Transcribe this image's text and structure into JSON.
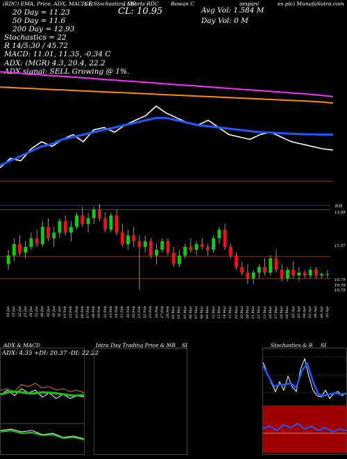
{
  "header": {
    "top_texts": [
      "(RDC) EMA, Price, ADX, MACD, R",
      "SI, Stochastics, MR",
      "I Charts RDC",
      "Rowan C",
      "ompani",
      "es plc) MunafaSutra.com"
    ],
    "cl_label": "CL: 10.95",
    "avg_vol": "Avg Vol: 1.584  M",
    "day_vol": "Day Vol: 0   M",
    "ema_lines": [
      "20  Day  = 11.23",
      "50  Day  = 11.6",
      "200  Day  = 12.93"
    ],
    "stoch_lines": [
      "Stochastics = 22",
      "R         14/5:30 / 45.72",
      "MACD: 11.01, 11.35, -0.34  C"
    ],
    "adx_lines": [
      "ADX:                    (MGR) 4.3, 20.4, 22.2",
      "ADX  signal: SELL Growing @ 1%."
    ]
  },
  "panel_titles": {
    "adx_macd": "ADX  & MACD",
    "adx_values": "ADX: 4.35  +DI: 20.37  -DI: 22.22",
    "intraday": "Intra  Day Trading Price  & MR",
    "intraday_si": "SI",
    "stoch": "Stochastics & R",
    "stoch_si": "SI"
  },
  "colors": {
    "up": "#14c814",
    "down": "#e01818",
    "ema20": "#ffffff",
    "ema50": "#1a5cff",
    "ema200_orange": "#ff8c00",
    "ema_magenta": "#ff2cff",
    "panel_border": "#444444",
    "stoch_line": "#1a5cff",
    "stoch_panel_bg": "#000000",
    "mrsi_bg": "#a00000"
  },
  "chart_data": [
    {
      "type": "line",
      "name": "ema-panel",
      "series": [
        {
          "name": "EMA 20",
          "values": [
            10.2,
            10.6,
            10.5,
            11.0,
            11.3,
            11.1,
            11.4,
            11.6,
            11.3,
            11.8,
            11.9,
            11.7,
            12.0,
            12.2,
            12.4,
            12.8,
            12.5,
            12.3,
            12.1,
            12.0,
            12.2,
            11.9,
            11.6,
            11.5,
            11.4,
            11.6,
            11.7,
            11.5,
            11.3,
            11.2,
            11.1,
            11.0,
            10.95
          ]
        },
        {
          "name": "EMA 50",
          "values": [
            10.3,
            10.5,
            10.7,
            10.9,
            11.1,
            11.2,
            11.4,
            11.5,
            11.6,
            11.7,
            11.8,
            11.9,
            12.0,
            12.1,
            12.2,
            12.3,
            12.3,
            12.2,
            12.1,
            12.0,
            11.95,
            11.9,
            11.85,
            11.8,
            11.75,
            11.7,
            11.68,
            11.66,
            11.64,
            11.62,
            11.61,
            11.6,
            11.6
          ]
        },
        {
          "name": "EMA 200",
          "values": [
            13.6,
            13.58,
            13.56,
            13.54,
            13.52,
            13.5,
            13.48,
            13.46,
            13.44,
            13.42,
            13.4,
            13.38,
            13.36,
            13.34,
            13.32,
            13.3,
            13.28,
            13.26,
            13.24,
            13.22,
            13.2,
            13.18,
            13.16,
            13.14,
            13.12,
            13.1,
            13.08,
            13.06,
            13.04,
            13.02,
            13.0,
            12.97,
            12.93
          ]
        }
      ]
    },
    {
      "type": "candlestick",
      "name": "price-panel",
      "dates": [
        "18 Jan",
        "19 Jan",
        "22 Jan",
        "23 Jan",
        "24 Jan",
        "25 Jan",
        "26 Jan",
        "29 Jan",
        "30 Jan",
        "31 Jan",
        "01 Feb",
        "02 Feb",
        "05 Feb",
        "06 Feb",
        "07 Feb",
        "08 Feb",
        "09 Feb",
        "12 Feb",
        "13 Feb",
        "14 Feb",
        "15 Feb",
        "16 Feb",
        "20 Feb",
        "21 Feb",
        "22 Feb",
        "23 Feb",
        "26 Feb",
        "27 Feb",
        "28 Feb",
        "01 Mar",
        "02 Mar",
        "05 Mar",
        "06 Mar",
        "07 Mar",
        "08 Mar",
        "09 Mar",
        "12 Mar",
        "13 Mar",
        "14 Mar",
        "15 Mar",
        "16 Mar",
        "19 Mar",
        "20 Mar",
        "21 Mar",
        "22 Mar",
        "23 Mar",
        "26 Mar",
        "27 Mar",
        "28 Mar",
        "29 Mar",
        "02 Apr",
        "03 Apr",
        "04 Apr",
        "05 Apr",
        "06 Apr",
        "09 Apr",
        "10 Apr"
      ],
      "ohlc": [
        [
          11.3,
          11.8,
          11.1,
          11.6
        ],
        [
          11.6,
          12.2,
          11.4,
          12.0
        ],
        [
          12.0,
          12.3,
          11.6,
          11.7
        ],
        [
          11.7,
          12.1,
          11.5,
          11.9
        ],
        [
          11.9,
          12.4,
          11.8,
          12.2
        ],
        [
          12.2,
          12.5,
          11.9,
          12.0
        ],
        [
          12.0,
          12.8,
          11.9,
          12.6
        ],
        [
          12.6,
          12.9,
          12.1,
          12.2
        ],
        [
          12.2,
          12.6,
          11.9,
          12.4
        ],
        [
          12.4,
          12.9,
          12.2,
          12.8
        ],
        [
          12.8,
          13.0,
          12.3,
          12.4
        ],
        [
          12.4,
          12.8,
          12.1,
          12.6
        ],
        [
          12.6,
          13.1,
          12.5,
          13.0
        ],
        [
          13.0,
          13.3,
          12.6,
          12.7
        ],
        [
          12.7,
          13.1,
          12.4,
          12.9
        ],
        [
          12.9,
          13.3,
          12.7,
          13.2
        ],
        [
          13.2,
          13.4,
          12.8,
          12.9
        ],
        [
          12.9,
          13.1,
          12.4,
          12.5
        ],
        [
          12.5,
          13.1,
          12.4,
          13.0
        ],
        [
          13.0,
          13.2,
          12.3,
          12.4
        ],
        [
          12.4,
          12.7,
          11.9,
          12.0
        ],
        [
          12.0,
          12.5,
          11.8,
          12.3
        ],
        [
          12.3,
          12.6,
          11.9,
          12.1
        ],
        [
          12.1,
          12.3,
          10.4,
          11.9
        ],
        [
          11.9,
          12.3,
          11.7,
          12.1
        ],
        [
          12.1,
          12.2,
          11.5,
          11.6
        ],
        [
          11.6,
          12.0,
          11.3,
          11.8
        ],
        [
          11.8,
          12.2,
          11.7,
          12.1
        ],
        [
          12.1,
          12.2,
          11.6,
          11.7
        ],
        [
          11.7,
          11.9,
          11.2,
          11.3
        ],
        [
          11.3,
          11.8,
          11.2,
          11.6
        ],
        [
          11.6,
          12.0,
          11.5,
          11.9
        ],
        [
          11.9,
          12.2,
          11.7,
          11.8
        ],
        [
          11.8,
          12.1,
          11.6,
          12.0
        ],
        [
          12.0,
          12.2,
          11.8,
          11.9
        ],
        [
          11.9,
          12.0,
          11.6,
          11.8
        ],
        [
          11.8,
          12.3,
          11.7,
          12.2
        ],
        [
          12.2,
          12.6,
          12.0,
          12.5
        ],
        [
          12.5,
          12.7,
          11.8,
          11.9
        ],
        [
          11.9,
          12.0,
          11.5,
          11.6
        ],
        [
          11.6,
          11.7,
          11.1,
          11.2
        ],
        [
          11.2,
          11.4,
          10.9,
          11.0
        ],
        [
          11.0,
          11.3,
          10.6,
          10.8
        ],
        [
          10.8,
          11.1,
          10.6,
          11.0
        ],
        [
          11.0,
          11.3,
          10.8,
          11.2
        ],
        [
          11.2,
          11.5,
          10.9,
          11.0
        ],
        [
          11.0,
          11.6,
          10.9,
          11.5
        ],
        [
          11.5,
          11.8,
          11.0,
          11.1
        ],
        [
          11.1,
          11.3,
          10.7,
          10.8
        ],
        [
          10.8,
          11.2,
          10.7,
          11.1
        ],
        [
          11.1,
          11.4,
          10.8,
          10.9
        ],
        [
          10.9,
          11.2,
          10.7,
          11.0
        ],
        [
          11.0,
          11.1,
          10.8,
          10.9
        ],
        [
          10.9,
          11.2,
          10.8,
          11.1
        ],
        [
          11.1,
          11.2,
          10.8,
          10.9
        ],
        [
          10.9,
          11.0,
          10.8,
          10.95
        ],
        [
          10.95,
          11.1,
          10.8,
          10.95
        ]
      ],
      "price_labels": [
        "13.95",
        "11.57",
        "10.79",
        "10.79",
        "10.79"
      ],
      "price_labels_top": "日日"
    }
  ]
}
